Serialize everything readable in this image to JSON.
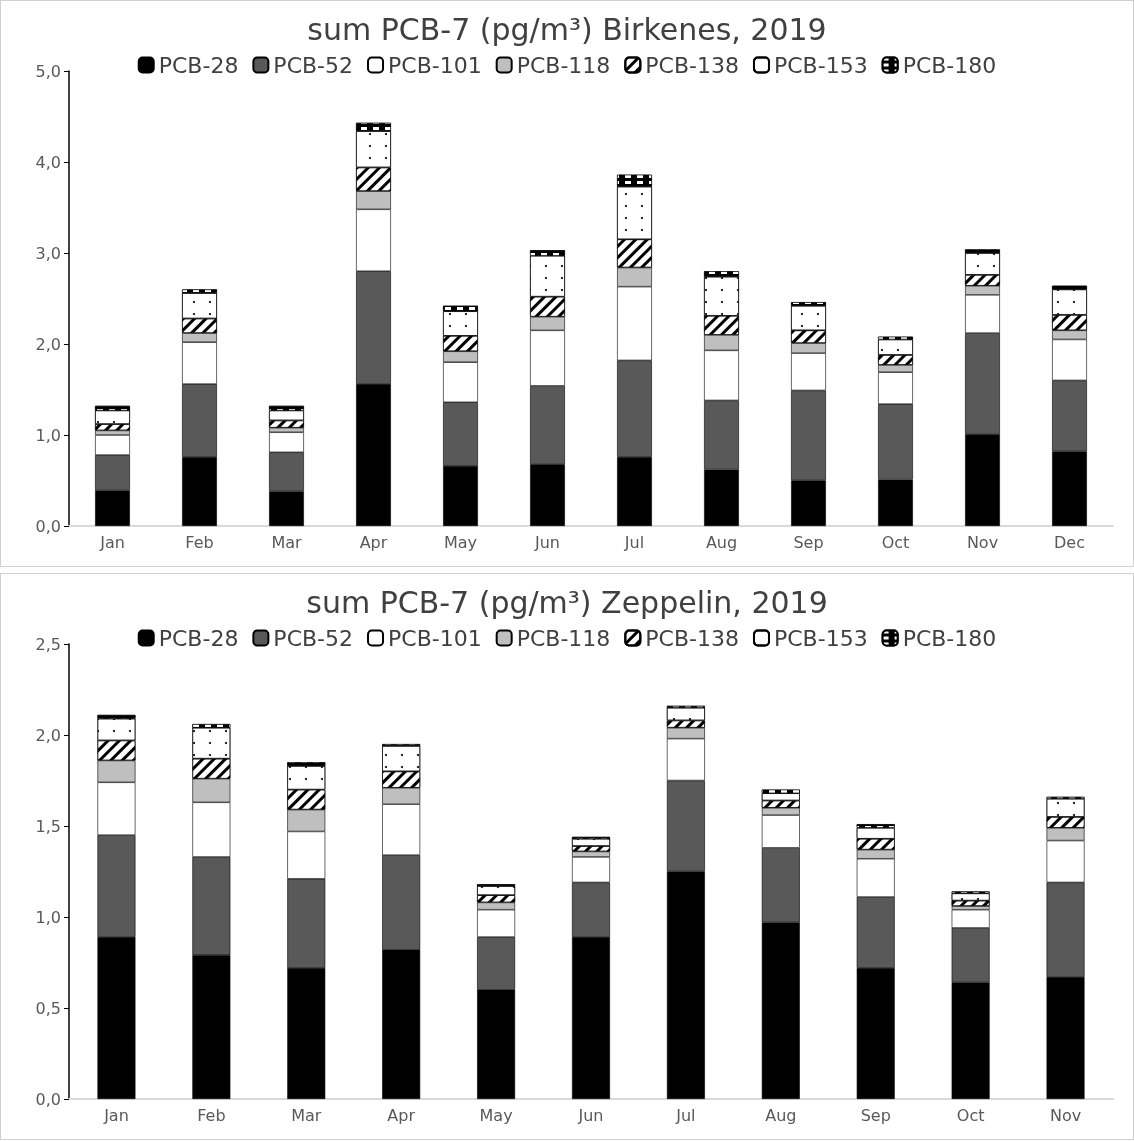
{
  "chart_data": [
    {
      "type": "bar",
      "stacked": true,
      "title": "sum PCB-7 (pg/m³) Birkenes, 2019",
      "legend": "top",
      "grid": false,
      "categories": [
        "Jan",
        "Feb",
        "Mar",
        "Apr",
        "May",
        "Jun",
        "Jul",
        "Aug",
        "Sep",
        "Oct",
        "Nov",
        "Dec"
      ],
      "ylim": [
        0,
        5
      ],
      "yticks": [
        {
          "value": 0,
          "label": "0,0"
        },
        {
          "value": 1,
          "label": "1,0"
        },
        {
          "value": 2,
          "label": "2,0"
        },
        {
          "value": 3,
          "label": "3,0"
        },
        {
          "value": 4,
          "label": "4,0"
        },
        {
          "value": 5,
          "label": "5,0"
        }
      ],
      "series": [
        {
          "name": "PCB-28",
          "color": "#000000",
          "values": [
            0.39,
            0.76,
            0.38,
            1.56,
            0.66,
            0.68,
            0.76,
            0.62,
            0.5,
            0.51,
            1.01,
            0.82
          ]
        },
        {
          "name": "PCB-52",
          "color": "#595959",
          "values": [
            0.39,
            0.8,
            0.43,
            1.24,
            0.7,
            0.86,
            1.06,
            0.76,
            0.99,
            0.83,
            1.11,
            0.78
          ]
        },
        {
          "name": "PCB-101",
          "color": "#ffffff",
          "values": [
            0.22,
            0.46,
            0.22,
            0.68,
            0.44,
            0.61,
            0.81,
            0.55,
            0.41,
            0.35,
            0.42,
            0.45
          ]
        },
        {
          "name": "PCB-118",
          "color": "#bfbfbf",
          "values": [
            0.05,
            0.1,
            0.05,
            0.2,
            0.12,
            0.15,
            0.21,
            0.17,
            0.11,
            0.08,
            0.1,
            0.1
          ]
        },
        {
          "name": "PCB-138",
          "color": "#ffffff",
          "values": [
            0.07,
            0.16,
            0.08,
            0.26,
            0.17,
            0.22,
            0.31,
            0.21,
            0.14,
            0.11,
            0.12,
            0.17
          ]
        },
        {
          "name": "PCB-153",
          "color": "#ffffff",
          "values": [
            0.15,
            0.28,
            0.11,
            0.4,
            0.27,
            0.45,
            0.58,
            0.43,
            0.27,
            0.17,
            0.24,
            0.28
          ]
        },
        {
          "name": "PCB-180",
          "color": "#000000",
          "values": [
            0.05,
            0.04,
            0.05,
            0.09,
            0.06,
            0.06,
            0.13,
            0.06,
            0.04,
            0.03,
            0.04,
            0.04
          ]
        }
      ]
    },
    {
      "type": "bar",
      "stacked": true,
      "title": "sum PCB-7 (pg/m³) Zeppelin, 2019",
      "legend": "top",
      "grid": false,
      "categories": [
        "Jan",
        "Feb",
        "Mar",
        "Apr",
        "May",
        "Jun",
        "Jul",
        "Aug",
        "Sep",
        "Oct",
        "Nov"
      ],
      "ylim": [
        0,
        2.5
      ],
      "yticks": [
        {
          "value": 0,
          "label": "0,0"
        },
        {
          "value": 0.5,
          "label": "0,5"
        },
        {
          "value": 1,
          "label": "1,0"
        },
        {
          "value": 1.5,
          "label": "1,5"
        },
        {
          "value": 2,
          "label": "2,0"
        },
        {
          "value": 2.5,
          "label": "2,5"
        }
      ],
      "series": [
        {
          "name": "PCB-28",
          "color": "#000000",
          "values": [
            0.89,
            0.79,
            0.72,
            0.82,
            0.6,
            0.89,
            1.25,
            0.97,
            0.72,
            0.64,
            0.67
          ]
        },
        {
          "name": "PCB-52",
          "color": "#595959",
          "values": [
            0.56,
            0.54,
            0.49,
            0.52,
            0.29,
            0.3,
            0.5,
            0.41,
            0.39,
            0.3,
            0.52
          ]
        },
        {
          "name": "PCB-101",
          "color": "#ffffff",
          "values": [
            0.29,
            0.3,
            0.26,
            0.28,
            0.15,
            0.14,
            0.23,
            0.18,
            0.21,
            0.1,
            0.23
          ]
        },
        {
          "name": "PCB-118",
          "color": "#bfbfbf",
          "values": [
            0.12,
            0.13,
            0.12,
            0.09,
            0.04,
            0.03,
            0.06,
            0.04,
            0.05,
            0.02,
            0.07
          ]
        },
        {
          "name": "PCB-138",
          "color": "#ffffff",
          "values": [
            0.11,
            0.11,
            0.11,
            0.09,
            0.04,
            0.03,
            0.04,
            0.04,
            0.06,
            0.03,
            0.06
          ]
        },
        {
          "name": "PCB-153",
          "color": "#ffffff",
          "values": [
            0.12,
            0.17,
            0.13,
            0.14,
            0.05,
            0.04,
            0.07,
            0.04,
            0.06,
            0.04,
            0.1
          ]
        },
        {
          "name": "PCB-180",
          "color": "#000000",
          "values": [
            0.02,
            0.02,
            0.02,
            0.01,
            0.01,
            0.01,
            0.01,
            0.02,
            0.02,
            0.01,
            0.01
          ]
        }
      ]
    }
  ]
}
